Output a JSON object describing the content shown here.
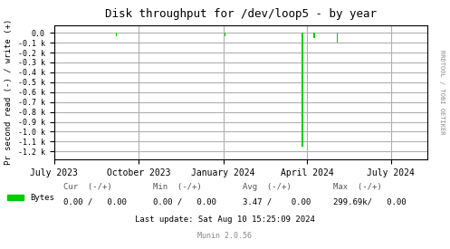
{
  "chart_data": {
    "type": "bar",
    "title": "Disk throughput for /dev/loop5 - by year",
    "ylabel": "Pr second read (-) / write (+)",
    "x": [
      1694000000,
      1704200000,
      1711500000,
      1712600000,
      1714800000
    ],
    "series": [
      {
        "name": "Bytes",
        "color": "#00cc00",
        "values": [
          -30,
          -30,
          -1150,
          -55,
          -95
        ]
      }
    ],
    "xlim": [
      1688169600,
      1723248000
    ],
    "xticks": [
      {
        "value": 1688169600,
        "label": "July 2023"
      },
      {
        "value": 1696118400,
        "label": "October 2023"
      },
      {
        "value": 1704067200,
        "label": "January 2024"
      },
      {
        "value": 1711929600,
        "label": "April 2024"
      },
      {
        "value": 1719792000,
        "label": "July 2024"
      }
    ],
    "ylim": [
      -1280,
      80
    ],
    "yticks": [
      {
        "value": 0,
        "label": "0.0"
      },
      {
        "value": -100,
        "label": "-0.1 k"
      },
      {
        "value": -200,
        "label": "-0.2 k"
      },
      {
        "value": -300,
        "label": "-0.3 k"
      },
      {
        "value": -400,
        "label": "-0.4 k"
      },
      {
        "value": -500,
        "label": "-0.5 k"
      },
      {
        "value": -600,
        "label": "-0.6 k"
      },
      {
        "value": -700,
        "label": "-0.7 k"
      },
      {
        "value": -800,
        "label": "-0.8 k"
      },
      {
        "value": -900,
        "label": "-0.9 k"
      },
      {
        "value": -1000,
        "label": "-1.0 k"
      },
      {
        "value": -1100,
        "label": "-1.1 k"
      },
      {
        "value": -1200,
        "label": "-1.2 k"
      }
    ],
    "grid": true,
    "legend": "lower left",
    "annotations": [
      "Cur  (-/+)",
      "Min  (-/+)",
      "Avg  (-/+)",
      "Max  (-/+)",
      "0.00 /   0.00",
      "0.00 /   0.00",
      "3.47 /    0.00",
      "299.69k/   0.00",
      "Last update: Sat Aug 10 15:25:09 2024",
      "Munin 2.0.56",
      "RRDTOOL / TOBI OETIKER"
    ]
  }
}
